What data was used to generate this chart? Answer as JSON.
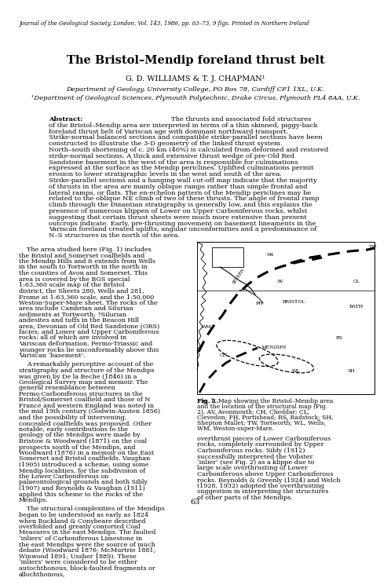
{
  "journal_header": "Journal of the Geological Society, London, Vol. 143, 1986, pp. 63–73, 9 figs. Printed in Northern Ireland",
  "title": "The Bristol–Mendip foreland thrust belt",
  "authors": "G. D. WILLIAMS & T. J. CHAPMAN¹",
  "affil1": "Department of Geology, University College, PO Box 78, Cardiff CF1 1XL, U.K.",
  "affil2": "¹Department of Geological Sciences, Plymouth Polytechnic, Drake Circus, Plymouth PL4 8AA, U.K.",
  "abstract_label": "Abstract:",
  "abstract_text": "The thrusts and associated fold structures of the Bristol–Mendip area are interpreted in terms of a thin skinned, piggy-back foreland thrust belt of Variscan age with dominant northward transport. Strike-normal balanced sections and compatible strike-parallel sections have been constructed to illustrate the 3-D geometry of the linked thrust system. North–south shortening of c. 20 km (40%) is calculated from deformed and restored strike-normal sections. A thick and extensive thrust wedge of pre-Old Red Sandstone basement in the west of the area is responsible for culminations expressed at the surface as the Mendip periclines. Uplifted culminations permit erosion to lower stratigraphic levels in the west and south of the area. Strike-parallel sections and a hanging wall cut-off map indicate that the majority of thrusts in the area are mainly oblique ramps rather than simple frontal and lateral ramps, or flats. The en-echelon pattern of the Mendip periclines may be related to the oblique NE climb of two of these thrusts. The angle of frontal ramp climb through the Dinantian stratigraphy is generally low, and this explains the presence of numerous klippen of Lower on Upper Carboniferous rocks, whilst suggesting that certain thrust sheets were much more extensive than present outcrops indicate. Early, pre-thrusting movement on basement lineaments in the Variscan foreland created uplifts, angular unconformities and a predominance of N–S structures in the north of the area.",
  "body_col1_para1": "The area studied here (Fig. 1) includes the Bristol and Somerset coalfields and the Mendip Hills and it extends from Wells in the south to Tortworth in the north in the counties of Avon and Somerset. This area is covered by the BGS special 1:63,360 scale map of the Bristol district, the Sheets 280, Wells and 281, Frome at 1:63,360 scale, and the 1:50,000 Weston-Super-Mare sheet. The rocks of the area include Cambrian and Silurian sediments at Tortworth; ?Silurian andesites and tuffs in the Beacon Hill area; Devonian of Old Red Sandstone (ORS) facies; and Lower and Upper Carboniferous rocks: all of which are involved in Variscan deformation. Permo-Triassic and younger rocks lie unconformably above this Variscan ‘basement’.",
  "body_col1_para2": "A remarkably perceptive account of the stratigraphy and structure of the Mendips was given by De la Beche (1846) in a Geological Survey map and memoir. The general resemblance between Permo-Carboniferous structures in the Bristol/Somerset coalfield and those of N France and western England was noted in the mid 19th century (Godwin-Austen 1856) and the possibility of intervening, concealed coalfields was proposed. Other notable, early contributions to the geology of the Mendips were made by Bristow & Woodward (1871) on the coal prospects south of the Mendips, and Woodward (1876) in a memoir on the East Somerset and Bristol coalfields. Vaughan (1905) introduced a scheme, using some Mendip localities, for the subdivision of the Lower Carboniferous on palaeontological grounds and both Sibly (1907) and Reynolds & Vaughan (1911) applied this scheme to the rocks of the Mendips.",
  "body_col1_para3": "The structural complexities of the Mendips began to be understood as early as 1824 when Buckland & Conybeare described overfolded and greatly contorted Coal Measures in the east Mendips. The faulted ‘inliers’ of Carboniferous Limestone in the east Mendips were the source of much debate (Woodward 1876; McMurtrie 1881; Winwood 1891; Ussher 1889). These ‘inliers’ were considered to be either autochthonous, block-faulted fragments or allochthonous,",
  "body_col2_para1": "overthrust pieces of Lower Carboniferous rocks, completely surrounded by Upper Carboniferous rocks. Sibly (1912) successfully interpreted the Vobster ‘inlier’ (see Fig. 2) as a klippe due to large scale overthrusting of Lower Carboniferous above Upper Carboniferous rocks. Reynolds & Greenly (1924) and Welch (1928, 1932) adopted the overthrusting suggestion in interpreting the structures of other parts of the Mendips.",
  "fig_caption": "Fig. 1.  Map showing the Bristol–Mendip area and the location of the structural map (Fig. 2). AV, Avonmouth; CH, Cheddar; CL, Clevedon; PH, Portishead; RS, Radstock; SH, Shepton Mallet; TW, Tortworth; WL, Wells; WM, Weston-super-Mare.",
  "page_number": "63",
  "background_color": "#ffffff",
  "text_color": "#000000"
}
